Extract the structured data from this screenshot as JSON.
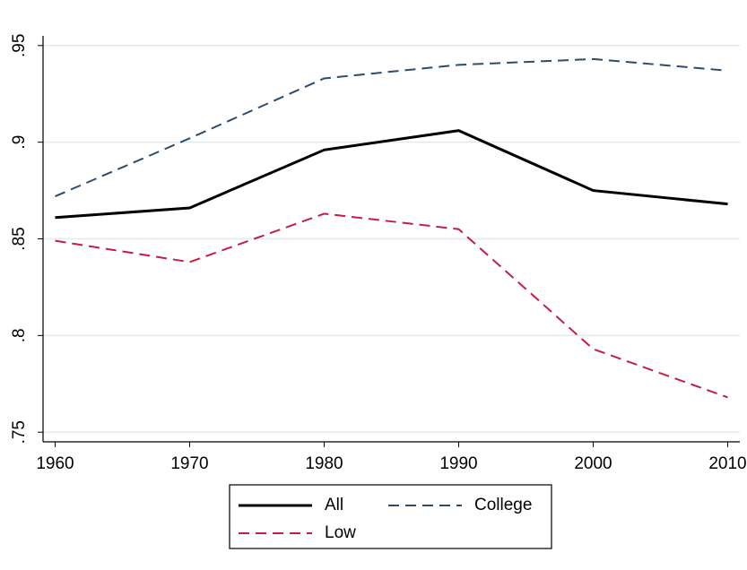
{
  "chart_data": {
    "type": "line",
    "x": [
      1960,
      1970,
      1980,
      1990,
      2000,
      2010
    ],
    "series": [
      {
        "name": "All",
        "color": "#000000",
        "dash": "solid",
        "values": [
          0.861,
          0.866,
          0.896,
          0.906,
          0.875,
          0.868
        ]
      },
      {
        "name": "College",
        "color": "#2d4b6b",
        "dash": "dashed",
        "values": [
          0.872,
          0.902,
          0.933,
          0.94,
          0.943,
          0.937
        ]
      },
      {
        "name": "Low",
        "color": "#c41e45",
        "dash": "dashed",
        "values": [
          0.849,
          0.838,
          0.863,
          0.855,
          0.793,
          0.768
        ]
      }
    ],
    "xlim": [
      1959.1,
      2010.9
    ],
    "xticks": [
      1960,
      1970,
      1980,
      1990,
      2000,
      2010
    ],
    "ylim": [
      0.745,
      0.955
    ],
    "yticks": [
      {
        "value": 0.75,
        "label": ".75"
      },
      {
        "value": 0.8,
        "label": ".8"
      },
      {
        "value": 0.85,
        "label": ".85"
      },
      {
        "value": 0.9,
        "label": ".9"
      },
      {
        "value": 0.95,
        "label": ".95"
      }
    ],
    "grid": true,
    "legend": "bottom"
  }
}
